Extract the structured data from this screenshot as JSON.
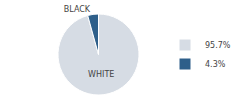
{
  "chart_data": {
    "type": "pie",
    "categories": [
      "WHITE",
      "BLACK"
    ],
    "values": [
      95.7,
      4.3
    ],
    "value_labels": [
      "95.7%",
      "4.3%"
    ],
    "colors": [
      "#d6dce4",
      "#2e5f8a"
    ],
    "legend": "right"
  }
}
